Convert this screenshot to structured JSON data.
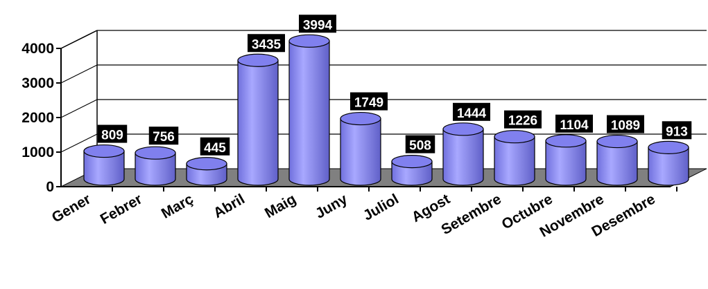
{
  "chart_data": {
    "type": "bar",
    "style": "3d-cylinder",
    "title": "",
    "xlabel": "",
    "ylabel": "",
    "categories": [
      "Gener",
      "Febrer",
      "Març",
      "Abril",
      "Maig",
      "Juny",
      "Juliol",
      "Agost",
      "Setembre",
      "Octubre",
      "Novembre",
      "Desembre"
    ],
    "values": [
      809,
      756,
      445,
      3435,
      3994,
      1749,
      508,
      1444,
      1226,
      1104,
      1089,
      913
    ],
    "data_labels": [
      "809",
      "756",
      "445",
      "3435",
      "3994",
      "1749",
      "508",
      "1444",
      "1226",
      "1104",
      "1089",
      "913"
    ],
    "yticks": [
      "0",
      "1000",
      "2000",
      "3000",
      "4000"
    ],
    "ylim": [
      0,
      4000
    ],
    "grid": true,
    "legend": "none",
    "colors": {
      "bar_fill": "#9999ff",
      "bar_dark": "#6666cc",
      "bar_top": "#8080ee",
      "floor": "#808080",
      "label_bg": "#000000",
      "label_text": "#ffffff"
    }
  }
}
